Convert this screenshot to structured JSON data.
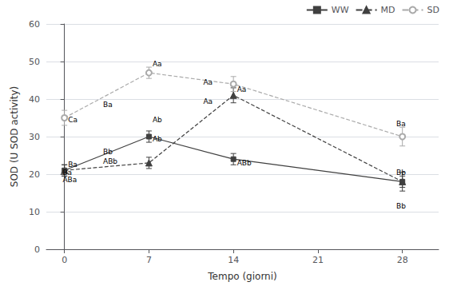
{
  "chart_data": {
    "type": "line",
    "x": [
      0,
      7,
      14,
      28
    ],
    "series": [
      {
        "name": "WW",
        "color": "#404040",
        "marker": "square",
        "line_style": "solid",
        "values": [
          21,
          30,
          24,
          18
        ],
        "errors": [
          1.5,
          1.5,
          1.5,
          1.5
        ]
      },
      {
        "name": "MD",
        "color": "#404040",
        "marker": "triangle",
        "line_style": "dashed",
        "values": [
          21,
          23,
          41,
          18
        ],
        "errors": [
          1.5,
          1.5,
          2.0,
          2.5
        ]
      },
      {
        "name": "SD",
        "color": "#aaaaaa",
        "marker": "open_circle",
        "line_style": "dashed",
        "values": [
          35,
          47,
          44,
          30
        ],
        "errors": [
          2.0,
          1.5,
          2.0,
          2.5
        ]
      }
    ],
    "xlabel": "Tempo (giorni)",
    "ylabel": "SOD (U SOD activity)",
    "xlim": [
      -1.5,
      31
    ],
    "xticks": [
      0,
      7,
      14,
      21,
      28
    ],
    "ylim": [
      0,
      60
    ],
    "yticks": [
      0,
      10,
      20,
      30,
      40,
      50,
      60
    ],
    "grid": true,
    "legend": "upper right",
    "annotations": [
      {
        "text": "Ba",
        "x": -0.15,
        "y": 19.5
      },
      {
        "text": "ABa",
        "x": -0.15,
        "y": 17.5
      },
      {
        "text": "Ab",
        "x": 7.3,
        "y": 28.5
      },
      {
        "text": "ABb",
        "x": 14.3,
        "y": 22.0
      },
      {
        "text": "Bb",
        "x": 27.5,
        "y": 10.5
      },
      {
        "text": "Ba",
        "x": 0.3,
        "y": 21.5
      },
      {
        "text": "Bb",
        "x": 3.2,
        "y": 25.0
      },
      {
        "text": "ABb",
        "x": 3.2,
        "y": 22.5
      },
      {
        "text": "Aa",
        "x": 11.5,
        "y": 38.5
      },
      {
        "text": "Bb",
        "x": 27.5,
        "y": 19.5
      },
      {
        "text": "Ca",
        "x": 0.3,
        "y": 33.5
      },
      {
        "text": "Ba",
        "x": 3.2,
        "y": 37.5
      },
      {
        "text": "Ab",
        "x": 7.3,
        "y": 33.5
      },
      {
        "text": "Aa",
        "x": 11.5,
        "y": 43.5
      },
      {
        "text": "Ba",
        "x": 27.5,
        "y": 32.5
      },
      {
        "text": "Aa",
        "x": 7.3,
        "y": 48.5
      },
      {
        "text": "Aa",
        "x": 14.3,
        "y": 41.5
      }
    ]
  }
}
